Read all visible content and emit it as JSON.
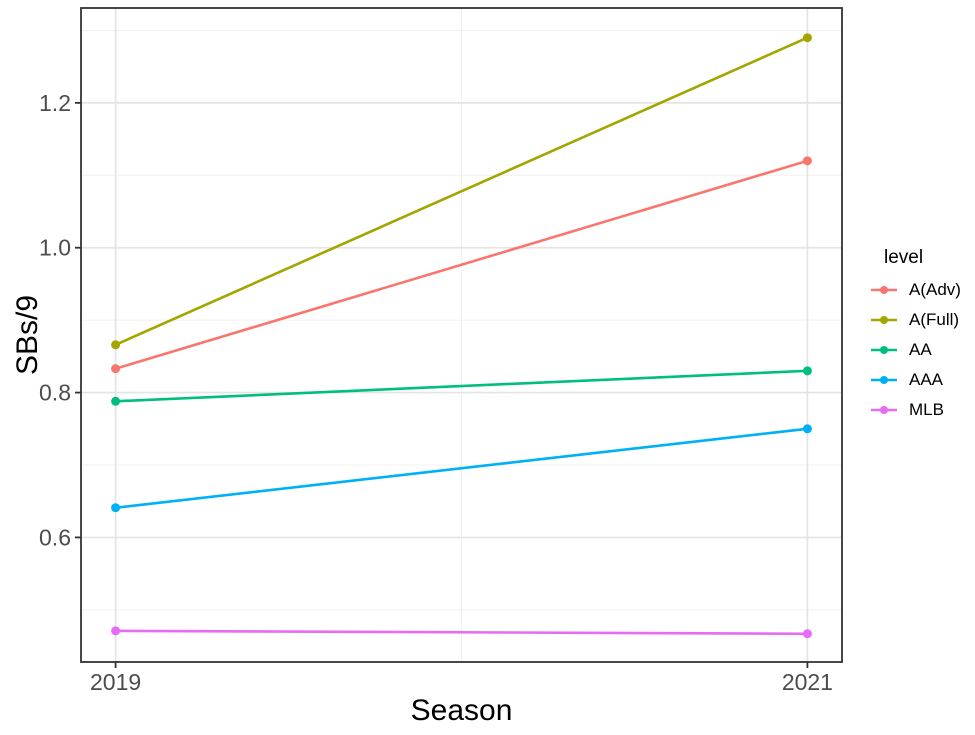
{
  "chart_data": {
    "type": "line",
    "title": "",
    "xlabel": "Season",
    "ylabel": "SBs/9",
    "legend_title": "level",
    "legend_position": "right",
    "grid": true,
    "x": [
      2019,
      2021
    ],
    "xtick_labels": [
      "2019",
      "2021"
    ],
    "xlim": [
      2018.9,
      2021.1
    ],
    "yticks": [
      0.6,
      0.8,
      1.0,
      1.2
    ],
    "ytick_labels": [
      "0.6",
      "0.8",
      "1.0",
      "1.2"
    ],
    "ylim": [
      0.428,
      1.331
    ],
    "y_minor": [
      0.5,
      0.7,
      0.9,
      1.1,
      1.3
    ],
    "x_minor": [
      2020
    ],
    "series": [
      {
        "name": "A(Adv)",
        "color": "#F8766D",
        "values": [
          0.833,
          1.12
        ]
      },
      {
        "name": "A(Full)",
        "color": "#A3A500",
        "values": [
          0.866,
          1.29
        ]
      },
      {
        "name": "AA",
        "color": "#00BF7D",
        "values": [
          0.788,
          0.83
        ]
      },
      {
        "name": "AAA",
        "color": "#00B0F6",
        "values": [
          0.641,
          0.75
        ]
      },
      {
        "name": "MLB",
        "color": "#E76BF3",
        "values": [
          0.471,
          0.467
        ]
      }
    ],
    "colors": {
      "background": "#FFFFFF",
      "panel_background": "#FFFFFF",
      "panel_border": "#333333",
      "grid_major": "#E4E4E4",
      "grid_minor": "#F1F1F1",
      "tick_mark": "#333333",
      "tick_label": "#4D4D4D",
      "text": "#000000"
    }
  }
}
